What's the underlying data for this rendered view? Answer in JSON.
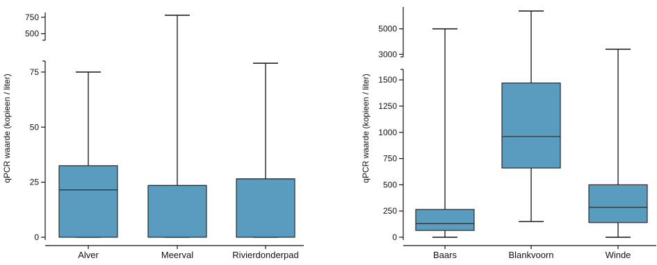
{
  "figure": {
    "box_color": "#5a9cc0",
    "box_edge": "#2a2a2a",
    "whisker_color": "#111111"
  },
  "chart_data": [
    {
      "type": "box",
      "ylabel": "qPCR waarde (kopieen / liter)",
      "y_axis_break": true,
      "lower_segment": {
        "ylim": [
          0,
          80
        ],
        "ticks": [
          0,
          25,
          50,
          75
        ]
      },
      "upper_segment": {
        "ylim": [
          400,
          780
        ],
        "ticks": [
          500,
          750
        ]
      },
      "categories": [
        "Alver",
        "Meerval",
        "Rivierdonderpad"
      ],
      "boxes": [
        {
          "name": "Alver",
          "min": 0,
          "q1": 0,
          "median": 21.5,
          "q3": 32.5,
          "max": 75
        },
        {
          "name": "Meerval",
          "min": 0,
          "q1": 0,
          "median": 23.5,
          "q3": 23.5,
          "max": 780
        },
        {
          "name": "Rivierdonderpad",
          "min": 0,
          "q1": 0,
          "median": 26.5,
          "q3": 26.5,
          "max": 79
        }
      ]
    },
    {
      "type": "box",
      "ylabel": "qPCR waarde (kopieen / liter)",
      "y_axis_break": true,
      "lower_segment": {
        "ylim": [
          0,
          1600
        ],
        "ticks": [
          0,
          250,
          500,
          750,
          1000,
          1250,
          1500
        ]
      },
      "upper_segment": {
        "ylim": [
          2800,
          6500
        ],
        "ticks": [
          3000,
          5000
        ]
      },
      "categories": [
        "Baars",
        "Blankvoorn",
        "Winde"
      ],
      "boxes": [
        {
          "name": "Baars",
          "min": 0,
          "q1": 65,
          "median": 130,
          "q3": 265,
          "max": 5000
        },
        {
          "name": "Blankvoorn",
          "min": 150,
          "q1": 660,
          "median": 960,
          "q3": 1470,
          "max": 6400
        },
        {
          "name": "Winde",
          "min": 0,
          "q1": 140,
          "median": 285,
          "q3": 500,
          "max": 3400
        }
      ]
    }
  ]
}
